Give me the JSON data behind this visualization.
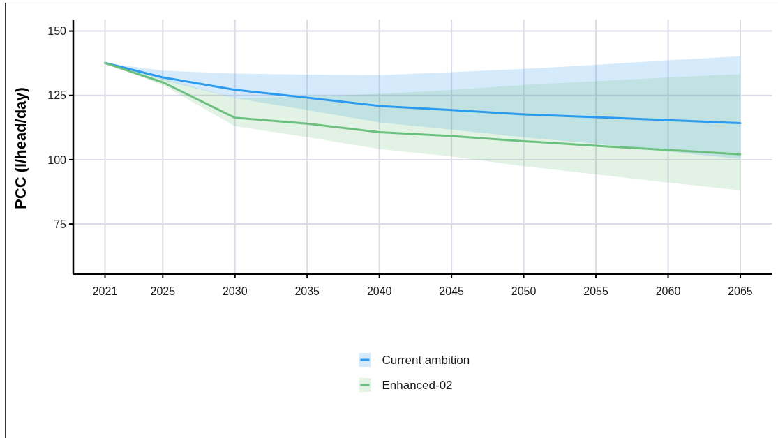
{
  "chart_data": {
    "type": "line",
    "ylabel": "PCC (l/head/day)",
    "x": [
      2021,
      2025,
      2030,
      2035,
      2040,
      2045,
      2050,
      2055,
      2060,
      2065
    ],
    "series": [
      {
        "name": "Current ambition",
        "color": "#2b9bf0",
        "values": [
          137.6,
          132.0,
          127.2,
          124.1,
          120.9,
          119.3,
          117.6,
          116.5,
          115.4,
          114.2
        ],
        "lower": [
          137.6,
          131.0,
          123.9,
          119.3,
          114.5,
          111.7,
          108.7,
          106.2,
          103.2,
          100.3
        ],
        "upper": [
          137.6,
          134.6,
          133.5,
          133.1,
          132.9,
          134.0,
          135.3,
          136.9,
          138.6,
          140.2
        ]
      },
      {
        "name": "Enhanced-02",
        "color": "#6cc07f",
        "values": [
          137.6,
          130.1,
          116.3,
          114.0,
          110.7,
          109.2,
          107.2,
          105.4,
          103.8,
          102.1
        ],
        "lower": [
          137.6,
          129.0,
          113.0,
          108.8,
          104.1,
          101.3,
          97.5,
          94.3,
          91.1,
          88.1
        ],
        "upper": [
          137.6,
          131.5,
          124.0,
          124.5,
          125.6,
          127.1,
          129.1,
          130.5,
          132.0,
          133.3
        ]
      }
    ],
    "xlim": [
      2018.8,
      2067.2
    ],
    "ylim": [
      55.5,
      154.5
    ],
    "xticks": [
      2021,
      2025,
      2030,
      2035,
      2040,
      2045,
      2050,
      2055,
      2060,
      2065
    ],
    "yticks": [
      75,
      100,
      125,
      150
    ],
    "grid": true,
    "legend": "bottom"
  }
}
